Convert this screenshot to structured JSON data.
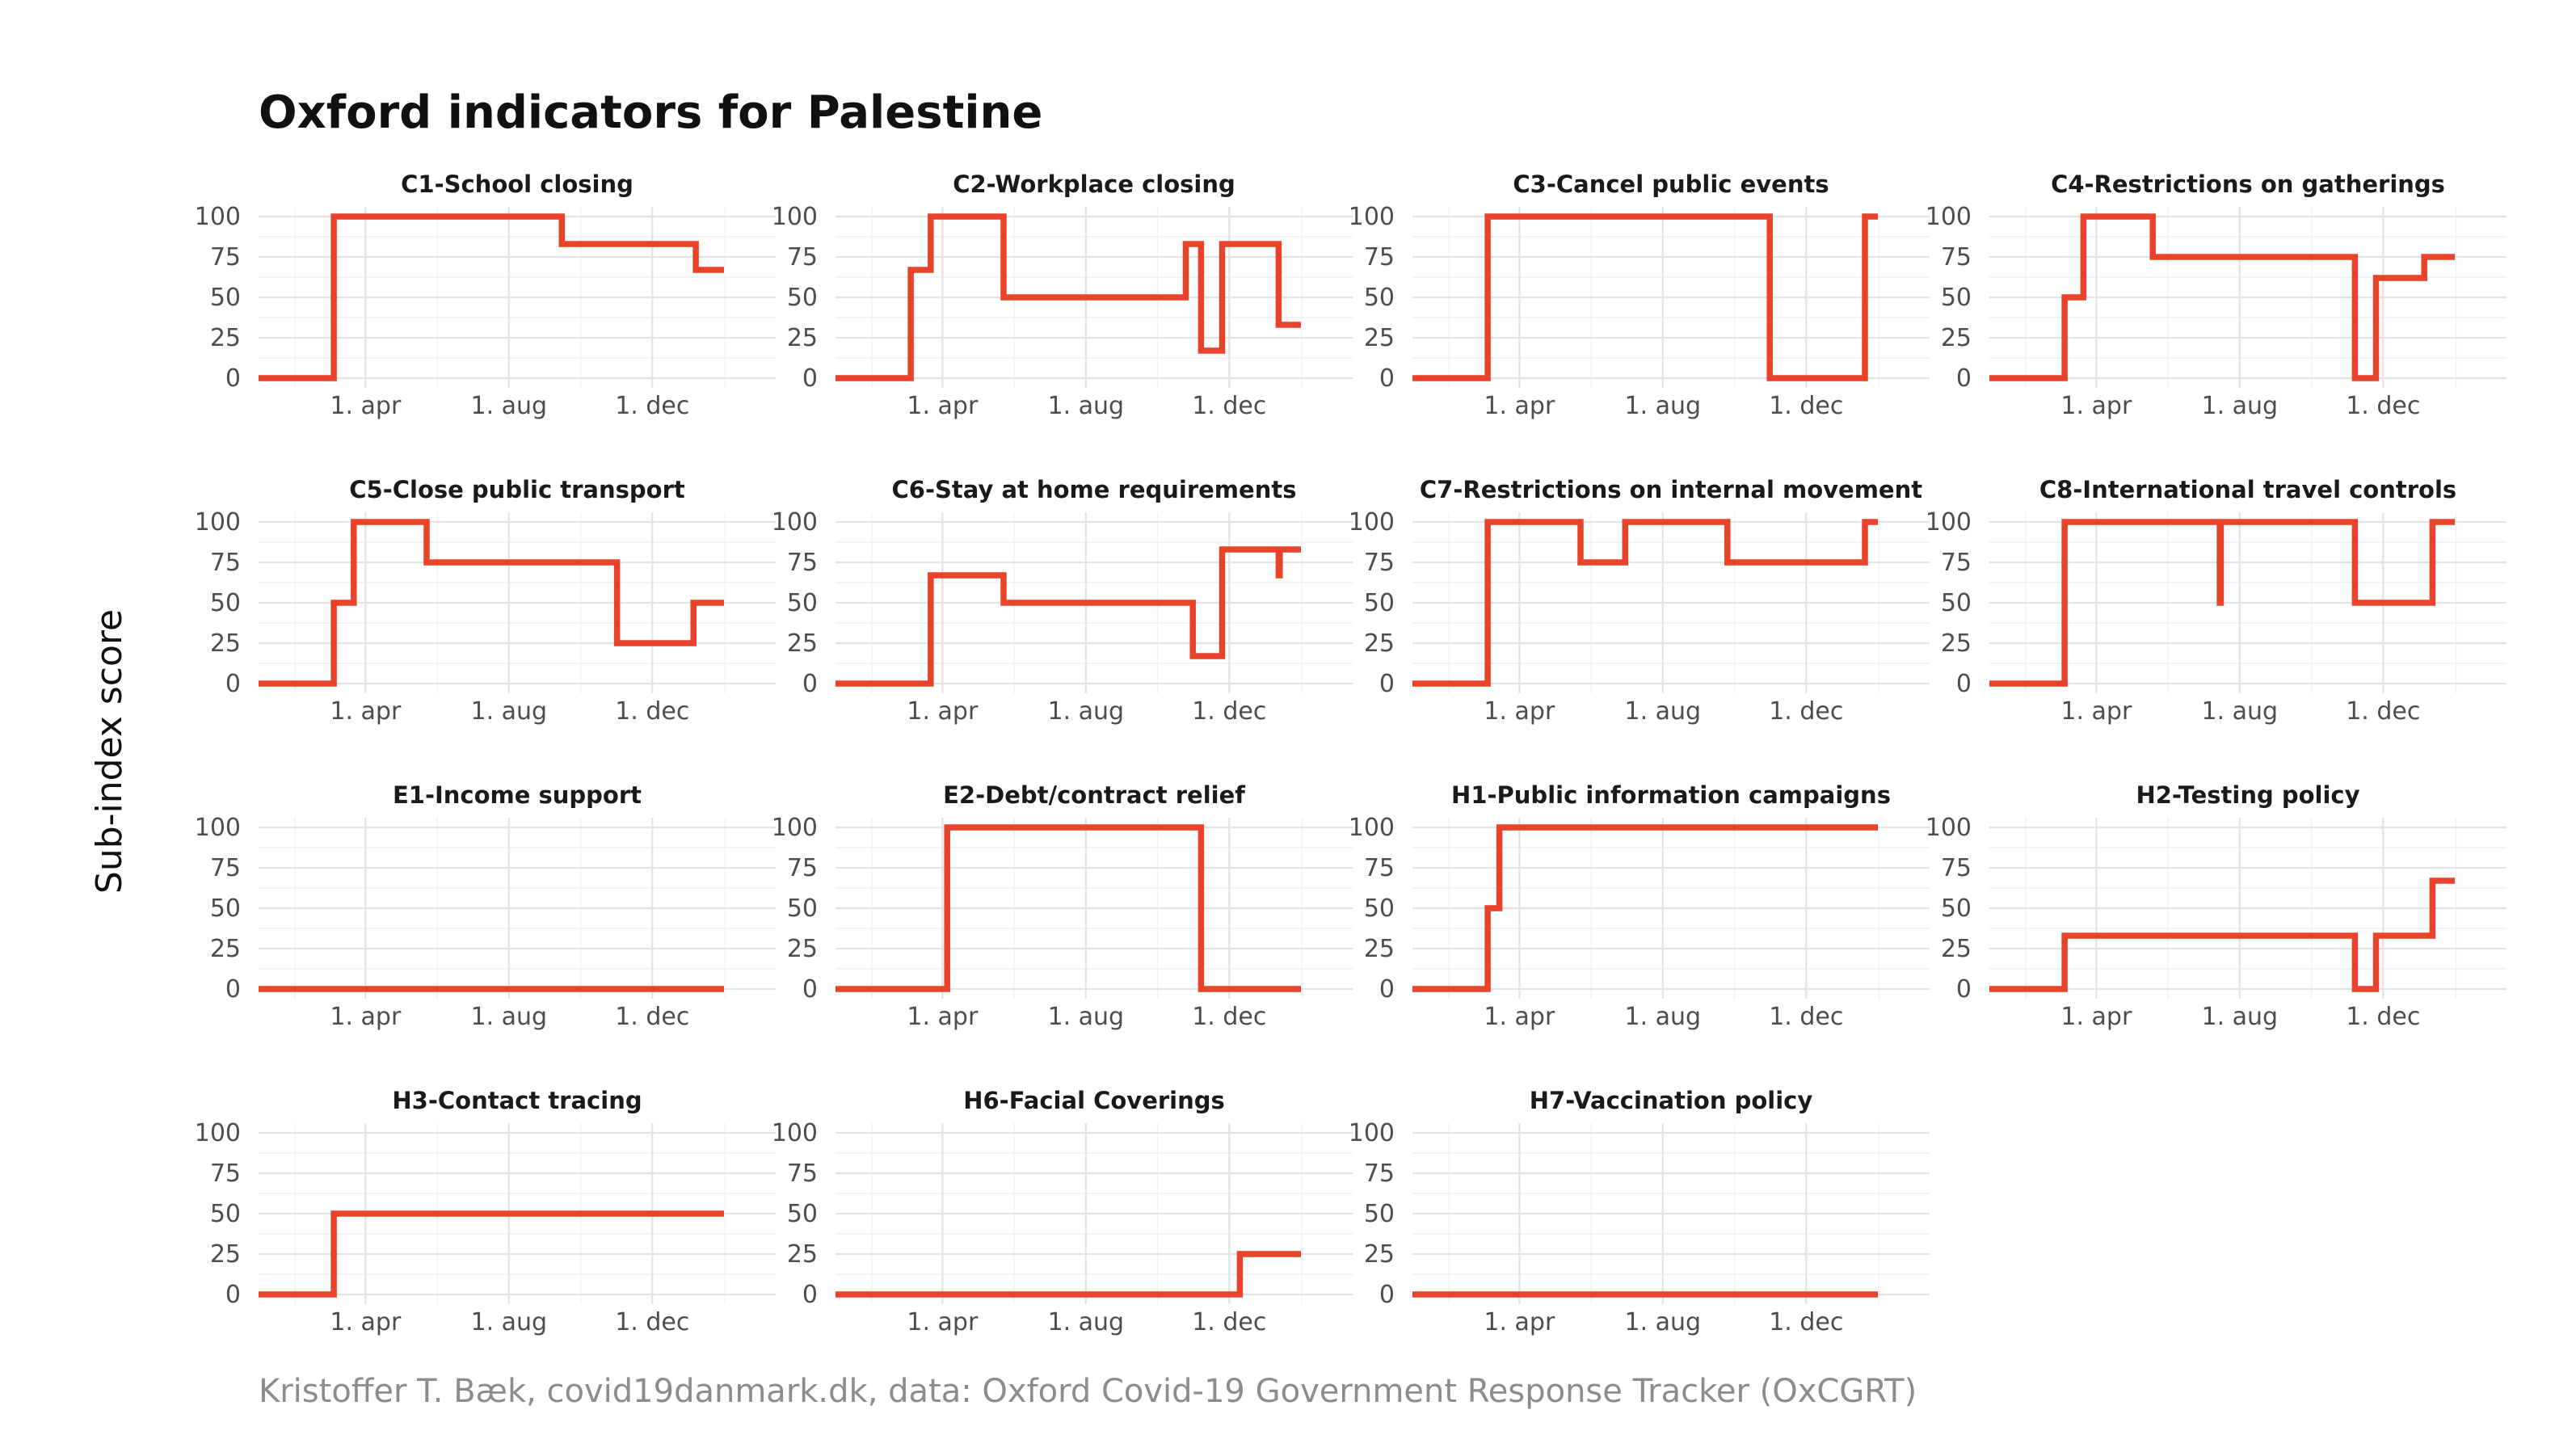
{
  "title": "Oxford indicators for Palestine",
  "caption": "Kristoffer T. Bæk, covid19danmark.dk, data: Oxford Covid-19 Government Response Tracker (OxCGRT)",
  "colors": {
    "line": "#e8432a"
  },
  "chart_data": {
    "type": "line",
    "step": true,
    "ylabel": "Sub-index score",
    "ylim": [
      0,
      100
    ],
    "yticks": [
      0,
      25,
      50,
      75,
      100
    ],
    "ytick_labels": [
      "0",
      "25",
      "50",
      "75",
      "100"
    ],
    "xlim": [
      "2020-01-01",
      "2021-03-16"
    ],
    "xticks": [
      "2020-04-01",
      "2020-08-01",
      "2020-12-01"
    ],
    "xtick_labels": [
      "1. apr",
      "1. aug",
      "1. dec"
    ],
    "grid": true,
    "panels": [
      {
        "name": "C1-School closing",
        "steps": [
          [
            "2020-01-01",
            0
          ],
          [
            "2020-03-05",
            100
          ],
          [
            "2020-09-15",
            83
          ],
          [
            "2021-01-07",
            67
          ],
          [
            "2021-01-31",
            67
          ]
        ]
      },
      {
        "name": "C2-Workplace closing",
        "steps": [
          [
            "2020-01-01",
            0
          ],
          [
            "2020-03-05",
            67
          ],
          [
            "2020-03-22",
            100
          ],
          [
            "2020-05-23",
            50
          ],
          [
            "2020-10-25",
            83
          ],
          [
            "2020-11-07",
            17
          ],
          [
            "2020-11-25",
            83
          ],
          [
            "2021-01-12",
            33
          ],
          [
            "2021-01-31",
            33
          ]
        ]
      },
      {
        "name": "C3-Cancel public events",
        "steps": [
          [
            "2020-01-01",
            0
          ],
          [
            "2020-03-05",
            100
          ],
          [
            "2020-10-31",
            0
          ],
          [
            "2021-01-20",
            100
          ],
          [
            "2021-01-31",
            100
          ]
        ]
      },
      {
        "name": "C4-Restrictions on gatherings",
        "steps": [
          [
            "2020-01-01",
            0
          ],
          [
            "2020-03-05",
            50
          ],
          [
            "2020-03-21",
            100
          ],
          [
            "2020-05-19",
            75
          ],
          [
            "2020-11-07",
            0
          ],
          [
            "2020-11-25",
            62
          ],
          [
            "2021-01-05",
            75
          ],
          [
            "2021-01-31",
            75
          ]
        ]
      },
      {
        "name": "C5-Close public transport",
        "steps": [
          [
            "2020-01-01",
            0
          ],
          [
            "2020-03-05",
            50
          ],
          [
            "2020-03-22",
            100
          ],
          [
            "2020-05-23",
            75
          ],
          [
            "2020-11-01",
            25
          ],
          [
            "2021-01-05",
            50
          ],
          [
            "2021-01-31",
            50
          ]
        ]
      },
      {
        "name": "C6-Stay at home requirements",
        "steps": [
          [
            "2020-01-01",
            0
          ],
          [
            "2020-03-22",
            67
          ],
          [
            "2020-05-23",
            50
          ],
          [
            "2020-10-31",
            17
          ],
          [
            "2020-11-25",
            83
          ],
          [
            "2021-01-12",
            67
          ],
          [
            "2021-01-13",
            83
          ],
          [
            "2021-01-31",
            83
          ]
        ]
      },
      {
        "name": "C7-Restrictions on internal movement",
        "steps": [
          [
            "2020-01-01",
            0
          ],
          [
            "2020-03-05",
            100
          ],
          [
            "2020-05-23",
            75
          ],
          [
            "2020-06-30",
            100
          ],
          [
            "2020-09-25",
            75
          ],
          [
            "2021-01-20",
            100
          ],
          [
            "2021-01-31",
            100
          ]
        ]
      },
      {
        "name": "C8-International travel controls",
        "steps": [
          [
            "2020-01-01",
            0
          ],
          [
            "2020-03-05",
            100
          ],
          [
            "2020-07-15",
            50
          ],
          [
            "2020-07-16",
            100
          ],
          [
            "2020-11-07",
            50
          ],
          [
            "2021-01-12",
            100
          ],
          [
            "2021-01-31",
            100
          ]
        ]
      },
      {
        "name": "E1-Income support",
        "steps": [
          [
            "2020-01-01",
            0
          ],
          [
            "2021-01-31",
            0
          ]
        ]
      },
      {
        "name": "E2-Debt/contract relief",
        "steps": [
          [
            "2020-01-01",
            0
          ],
          [
            "2020-04-05",
            100
          ],
          [
            "2020-11-07",
            0
          ],
          [
            "2021-01-31",
            0
          ]
        ]
      },
      {
        "name": "H1-Public information campaigns",
        "steps": [
          [
            "2020-01-01",
            0
          ],
          [
            "2020-03-05",
            50
          ],
          [
            "2020-03-15",
            100
          ],
          [
            "2021-01-31",
            100
          ]
        ]
      },
      {
        "name": "H2-Testing policy",
        "steps": [
          [
            "2020-01-01",
            0
          ],
          [
            "2020-03-05",
            33
          ],
          [
            "2020-11-07",
            0
          ],
          [
            "2020-11-25",
            33
          ],
          [
            "2021-01-12",
            67
          ],
          [
            "2021-01-31",
            67
          ]
        ]
      },
      {
        "name": "H3-Contact tracing",
        "steps": [
          [
            "2020-01-01",
            0
          ],
          [
            "2020-03-05",
            50
          ],
          [
            "2021-01-31",
            50
          ]
        ]
      },
      {
        "name": "H6-Facial Coverings",
        "steps": [
          [
            "2020-01-01",
            0
          ],
          [
            "2020-12-10",
            25
          ],
          [
            "2021-01-31",
            25
          ]
        ]
      },
      {
        "name": "H7-Vaccination policy",
        "steps": [
          [
            "2020-01-01",
            0
          ],
          [
            "2021-01-31",
            0
          ]
        ]
      }
    ]
  }
}
